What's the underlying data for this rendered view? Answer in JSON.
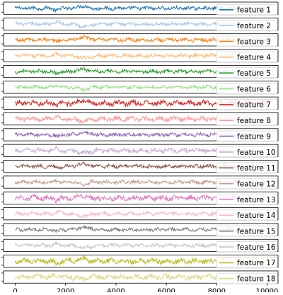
{
  "chart_data": {
    "type": "line",
    "layout": "stacked small multiples sharing x axis",
    "x_range": [
      0,
      10000
    ],
    "x_ticks": [
      0,
      2000,
      4000,
      6000,
      8000,
      10000
    ],
    "y_ticks_shown": false,
    "grid": false,
    "legend": "right, one entry per panel",
    "series": [
      {
        "name": "feature 1",
        "color": "#1f77b4"
      },
      {
        "name": "feature 2",
        "color": "#aec7e8"
      },
      {
        "name": "feature 3",
        "color": "#ff7f0e"
      },
      {
        "name": "feature 4",
        "color": "#ffbb78"
      },
      {
        "name": "feature 5",
        "color": "#2ca02c"
      },
      {
        "name": "feature 6",
        "color": "#98df8a"
      },
      {
        "name": "feature 7",
        "color": "#d62728"
      },
      {
        "name": "feature 8",
        "color": "#ff9896"
      },
      {
        "name": "feature 9",
        "color": "#9467bd"
      },
      {
        "name": "feature 10",
        "color": "#c5b0d5"
      },
      {
        "name": "feature 11",
        "color": "#8c564b"
      },
      {
        "name": "feature 12",
        "color": "#c49c94"
      },
      {
        "name": "feature 13",
        "color": "#e377c2"
      },
      {
        "name": "feature 14",
        "color": "#f7b6d2"
      },
      {
        "name": "feature 15",
        "color": "#7f7f7f"
      },
      {
        "name": "feature 16",
        "color": "#c7c7c7"
      },
      {
        "name": "feature 17",
        "color": "#bcbd22"
      },
      {
        "name": "feature 18",
        "color": "#dbdb8d"
      }
    ]
  }
}
